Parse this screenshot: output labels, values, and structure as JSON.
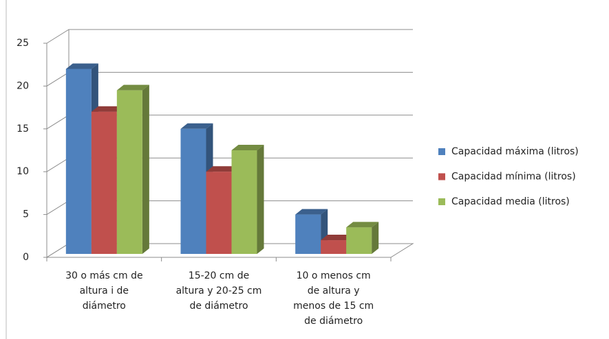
{
  "chart_data": {
    "type": "bar3d",
    "categories": [
      [
        "30 o más cm de",
        "altura i de",
        "diámetro"
      ],
      [
        "15-20 cm de",
        "altura y 20-25 cm",
        "de diámetro"
      ],
      [
        "10 o menos cm",
        "de altura y",
        "menos de 15 cm",
        "de diámetro"
      ]
    ],
    "series": [
      {
        "name": "Capacidad máxima (litros)",
        "color": "#4f81bd",
        "values": [
          22,
          15,
          5
        ]
      },
      {
        "name": "Capacidad mínima (litros)",
        "color": "#c0504d",
        "values": [
          17,
          10,
          2
        ]
      },
      {
        "name": "Capacidad media (litros)",
        "color": "#9bbb59",
        "values": [
          19.5,
          12.5,
          3.5
        ]
      }
    ],
    "ylim": [
      0,
      25
    ],
    "yticks": [
      0,
      5,
      10,
      15,
      20,
      25
    ],
    "grid": true,
    "legend": "right"
  }
}
